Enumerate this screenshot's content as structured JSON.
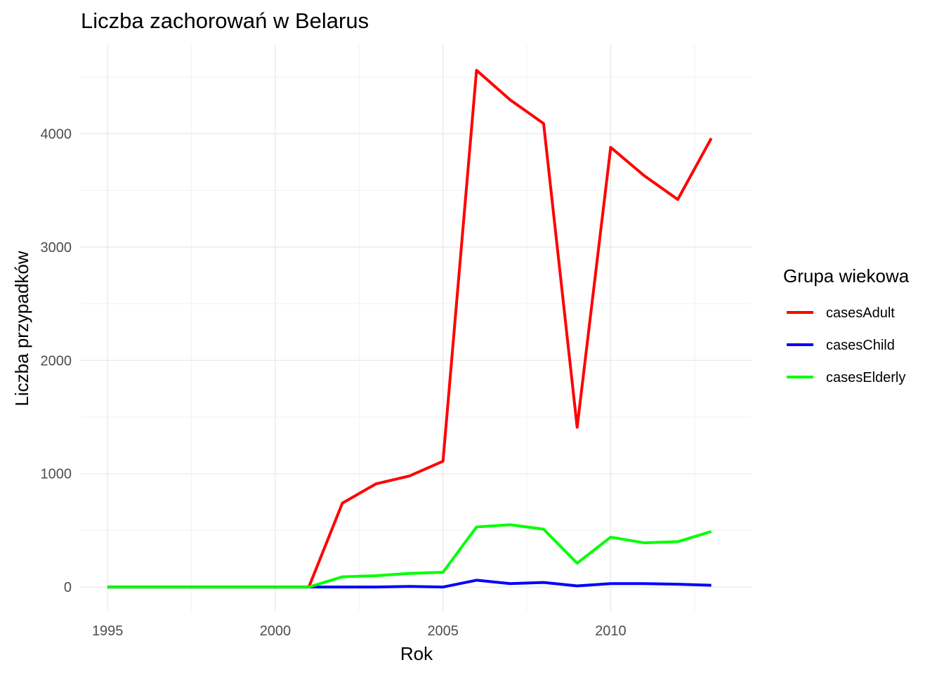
{
  "chart_data": {
    "type": "line",
    "title": "Liczba zachorowań w Belarus",
    "xlabel": "Rok",
    "ylabel": "Liczba przypadków",
    "xlim": [
      1994.2,
      2014.2
    ],
    "ylim": [
      -210,
      4790
    ],
    "x_ticks": [
      1995,
      2000,
      2005,
      2010
    ],
    "y_ticks": [
      0,
      1000,
      2000,
      3000,
      4000
    ],
    "grid": true,
    "legend": {
      "title": "Grupa wiekowa",
      "position": "right"
    },
    "x": [
      1995,
      1996,
      1997,
      1998,
      1999,
      2000,
      2001,
      2002,
      2003,
      2004,
      2005,
      2006,
      2007,
      2008,
      2009,
      2010,
      2011,
      2012,
      2013
    ],
    "series": [
      {
        "name": "casesAdult",
        "color": "#ff0000",
        "values": [
          0,
          0,
          0,
          0,
          0,
          0,
          0,
          740,
          910,
          980,
          1110,
          4560,
          4300,
          4090,
          1410,
          3880,
          3630,
          3420,
          3960
        ]
      },
      {
        "name": "casesChild",
        "color": "#0000ff",
        "values": [
          0,
          0,
          0,
          0,
          0,
          0,
          0,
          0,
          0,
          5,
          0,
          60,
          30,
          40,
          10,
          30,
          30,
          25,
          15
        ]
      },
      {
        "name": "casesElderly",
        "color": "#00ff00",
        "values": [
          0,
          0,
          0,
          0,
          0,
          0,
          0,
          90,
          100,
          120,
          130,
          530,
          550,
          510,
          210,
          440,
          390,
          400,
          490
        ]
      }
    ]
  }
}
